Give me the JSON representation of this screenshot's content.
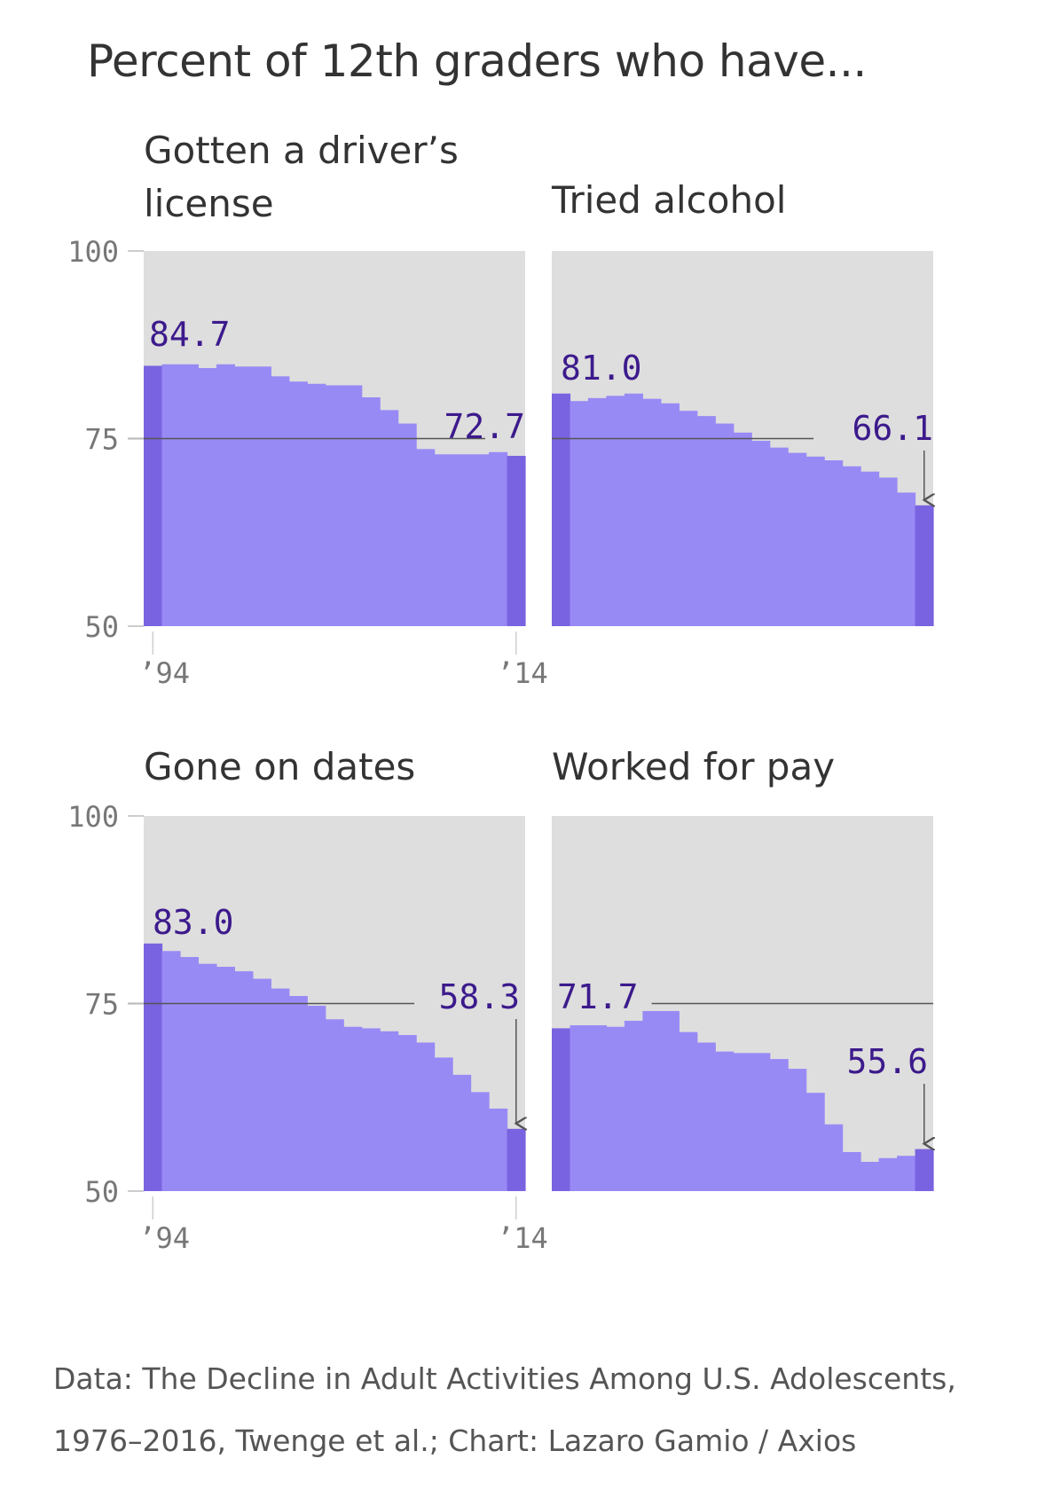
{
  "title": "Percent of 12th graders who have...",
  "source_lines": [
    "Data: The Decline in Adult Activities Among U.S. Adolescents,",
    "1976–2016, Twenge et al.; Chart: Lazaro Gamio / Axios"
  ],
  "colors": {
    "background_panel": "#dedede",
    "bar": "#988af5",
    "bar_highlight": "#7a63e0",
    "label": "#3c1a8c",
    "axis_text": "#777777",
    "reference_line": "#555555"
  },
  "chart_data": [
    {
      "type": "bar",
      "title": "Gotten a driver’s\nlicense",
      "ylim": [
        50,
        100
      ],
      "yticks": [
        "100",
        "75",
        "50"
      ],
      "xticks": [
        "’94",
        "’14"
      ],
      "categories": [
        1994,
        1995,
        1996,
        1997,
        1998,
        1999,
        2000,
        2001,
        2002,
        2003,
        2004,
        2005,
        2006,
        2007,
        2008,
        2009,
        2010,
        2011,
        2012,
        2013,
        2014
      ],
      "values": [
        84.7,
        84.9,
        84.9,
        84.4,
        84.9,
        84.6,
        84.6,
        83.3,
        82.6,
        82.3,
        82.1,
        82.1,
        80.5,
        78.8,
        77.0,
        73.6,
        72.9,
        72.9,
        72.9,
        73.2,
        72.7
      ],
      "labels": [
        {
          "index": 0,
          "text": "84.7"
        },
        {
          "index": 20,
          "text": "72.7"
        }
      ]
    },
    {
      "type": "bar",
      "title": "Tried alcohol",
      "ylim": [
        50,
        100
      ],
      "xticks": [],
      "categories": [
        1994,
        1995,
        1996,
        1997,
        1998,
        1999,
        2000,
        2001,
        2002,
        2003,
        2004,
        2005,
        2006,
        2007,
        2008,
        2009,
        2010,
        2011,
        2012,
        2013,
        2014
      ],
      "values": [
        81.0,
        80.0,
        80.4,
        80.7,
        81.0,
        80.3,
        79.7,
        78.7,
        78.0,
        77.0,
        75.8,
        74.7,
        73.8,
        73.1,
        72.6,
        72.1,
        71.3,
        70.6,
        69.8,
        67.8,
        66.1
      ],
      "labels": [
        {
          "index": 0,
          "text": "81.0"
        },
        {
          "index": 20,
          "text": "66.1",
          "arrow": true
        }
      ]
    },
    {
      "type": "bar",
      "title": "Gone on dates",
      "ylim": [
        50,
        100
      ],
      "yticks": [
        "100",
        "75",
        "50"
      ],
      "xticks": [
        "’94",
        "’14"
      ],
      "categories": [
        1994,
        1995,
        1996,
        1997,
        1998,
        1999,
        2000,
        2001,
        2002,
        2003,
        2004,
        2005,
        2006,
        2007,
        2008,
        2009,
        2010,
        2011,
        2012,
        2013,
        2014
      ],
      "values": [
        83.0,
        82.0,
        81.2,
        80.3,
        79.9,
        79.3,
        78.3,
        77.0,
        76.0,
        74.7,
        72.9,
        71.9,
        71.7,
        71.3,
        70.8,
        69.8,
        67.8,
        65.5,
        63.2,
        61.0,
        58.3
      ],
      "labels": [
        {
          "index": 0,
          "text": "83.0"
        },
        {
          "index": 20,
          "text": "58.3",
          "arrow": true
        }
      ]
    },
    {
      "type": "bar",
      "title": "Worked for pay",
      "ylim": [
        50,
        100
      ],
      "xticks": [],
      "categories": [
        1994,
        1995,
        1996,
        1997,
        1998,
        1999,
        2000,
        2001,
        2002,
        2003,
        2004,
        2005,
        2006,
        2007,
        2008,
        2009,
        2010,
        2011,
        2012,
        2013,
        2014
      ],
      "values": [
        71.7,
        72.1,
        72.1,
        71.9,
        72.7,
        74.0,
        74.0,
        71.2,
        69.8,
        68.6,
        68.4,
        68.4,
        67.6,
        66.3,
        63.1,
        58.9,
        55.2,
        53.9,
        54.4,
        54.7,
        55.6
      ],
      "labels": [
        {
          "index": 0,
          "text": "71.7"
        },
        {
          "index": 20,
          "text": "55.6",
          "arrow": true
        }
      ]
    }
  ]
}
